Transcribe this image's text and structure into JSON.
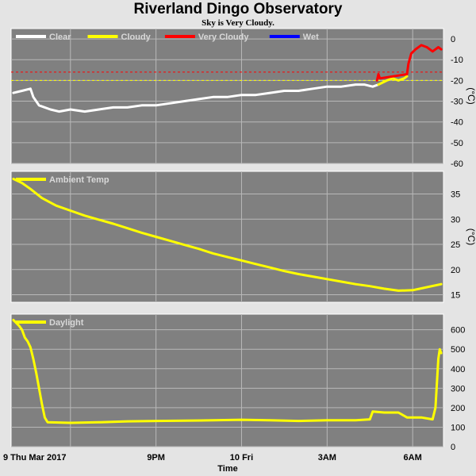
{
  "chart_data": {
    "title": "Riverland Dingo Observatory",
    "subtitle": "Sky is Very Cloudy.",
    "x_axis": {
      "label": "Time",
      "ticks": [
        {
          "label": "9 Thu Mar 2017",
          "x": 0
        },
        {
          "label": "9PM",
          "x": 3
        },
        {
          "label": "10 Fri",
          "x": 6
        },
        {
          "label": "3AM",
          "x": 9
        },
        {
          "label": "6AM",
          "x": 12
        }
      ],
      "xlim": [
        -2.08,
        13.08
      ]
    },
    "panels": [
      {
        "type": "line",
        "ylabel": "(°C)",
        "ylim": [
          -60,
          5
        ],
        "yticks": [
          0,
          -10,
          -20,
          -30,
          -40,
          -50,
          -60
        ],
        "grid": true,
        "legend": [
          {
            "label": "Clear",
            "color": "#ffffff"
          },
          {
            "label": "Cloudy",
            "color": "#ffff00"
          },
          {
            "label": "Very Cloudy",
            "color": "#ff0000"
          },
          {
            "label": "Wet",
            "color": "#0000ff"
          }
        ],
        "thresholds": [
          {
            "y": -16,
            "color": "#ff0000",
            "dash": true
          },
          {
            "y": -20,
            "color": "#ffff00",
            "dash": true
          }
        ],
        "series": [
          {
            "name": "Clear",
            "color": "#ffffff",
            "points": [
              [
                -2.0,
                -26
              ],
              [
                -1.7,
                -25
              ],
              [
                -1.4,
                -24
              ],
              [
                -1.3,
                -28
              ],
              [
                -1.1,
                -32
              ],
              [
                -0.7,
                -34
              ],
              [
                -0.4,
                -35
              ],
              [
                0.0,
                -34
              ],
              [
                0.5,
                -35
              ],
              [
                1.0,
                -34
              ],
              [
                1.5,
                -33
              ],
              [
                2.0,
                -33
              ],
              [
                2.5,
                -32
              ],
              [
                3.0,
                -32
              ],
              [
                3.5,
                -31
              ],
              [
                4.0,
                -30
              ],
              [
                4.5,
                -29
              ],
              [
                5.0,
                -28
              ],
              [
                5.5,
                -28
              ],
              [
                6.0,
                -27
              ],
              [
                6.5,
                -27
              ],
              [
                7.0,
                -26
              ],
              [
                7.5,
                -25
              ],
              [
                8.0,
                -25
              ],
              [
                8.5,
                -24
              ],
              [
                9.0,
                -23
              ],
              [
                9.5,
                -23
              ],
              [
                10.0,
                -22
              ],
              [
                10.3,
                -22
              ],
              [
                10.6,
                -23
              ],
              [
                10.8,
                -22
              ]
            ]
          },
          {
            "name": "Cloudy",
            "color": "#ffff00",
            "points": [
              [
                10.8,
                -22
              ],
              [
                11.1,
                -20
              ],
              [
                11.3,
                -19
              ],
              [
                11.5,
                -20
              ],
              [
                11.7,
                -19
              ],
              [
                11.8,
                -18
              ]
            ]
          },
          {
            "name": "Very Cloudy",
            "color": "#ff0000",
            "points": [
              [
                10.75,
                -20
              ],
              [
                10.8,
                -17
              ],
              [
                10.85,
                -19
              ],
              [
                11.8,
                -17
              ],
              [
                11.85,
                -12
              ],
              [
                11.95,
                -7
              ],
              [
                12.1,
                -5
              ],
              [
                12.3,
                -3
              ],
              [
                12.5,
                -4
              ],
              [
                12.7,
                -6
              ],
              [
                12.9,
                -4
              ],
              [
                13.0,
                -5
              ]
            ]
          }
        ]
      },
      {
        "type": "line",
        "ylabel": "(°C)",
        "ylim": [
          13.5,
          39.5
        ],
        "yticks": [
          15,
          20,
          25,
          30,
          35
        ],
        "grid": true,
        "legend": [
          {
            "label": "Ambient Temp",
            "color": "#ffff00"
          }
        ],
        "series": [
          {
            "name": "Ambient Temp",
            "color": "#ffff00",
            "points": [
              [
                -2.0,
                38
              ],
              [
                -1.7,
                37.2
              ],
              [
                -1.4,
                36
              ],
              [
                -1.0,
                34.2
              ],
              [
                -0.5,
                32.7
              ],
              [
                0.0,
                31.7
              ],
              [
                0.5,
                30.7
              ],
              [
                1.0,
                29.9
              ],
              [
                1.5,
                29.1
              ],
              [
                2.0,
                28.2
              ],
              [
                2.5,
                27.3
              ],
              [
                3.0,
                26.5
              ],
              [
                3.5,
                25.7
              ],
              [
                4.0,
                24.9
              ],
              [
                4.5,
                24.1
              ],
              [
                5.0,
                23.2
              ],
              [
                5.5,
                22.5
              ],
              [
                6.0,
                21.8
              ],
              [
                6.5,
                21.1
              ],
              [
                7.0,
                20.4
              ],
              [
                7.5,
                19.7
              ],
              [
                8.0,
                19.1
              ],
              [
                8.5,
                18.6
              ],
              [
                9.0,
                18.1
              ],
              [
                9.5,
                17.6
              ],
              [
                10.0,
                17.1
              ],
              [
                10.5,
                16.7
              ],
              [
                11.0,
                16.2
              ],
              [
                11.5,
                15.8
              ],
              [
                12.0,
                15.9
              ],
              [
                12.5,
                16.5
              ],
              [
                13.0,
                17.1
              ]
            ]
          }
        ]
      },
      {
        "type": "line",
        "ylabel": "",
        "ylim": [
          0,
          680
        ],
        "yticks": [
          0,
          100,
          200,
          300,
          400,
          500,
          600
        ],
        "grid": true,
        "legend": [
          {
            "label": "Daylight",
            "color": "#ffff00"
          }
        ],
        "series": [
          {
            "name": "Daylight",
            "color": "#ffff00",
            "points": [
              [
                -2.0,
                650
              ],
              [
                -1.8,
                620
              ],
              [
                -1.7,
                600
              ],
              [
                -1.6,
                560
              ],
              [
                -1.5,
                540
              ],
              [
                -1.4,
                510
              ],
              [
                -1.3,
                450
              ],
              [
                -1.2,
                380
              ],
              [
                -1.1,
                300
              ],
              [
                -1.0,
                220
              ],
              [
                -0.9,
                150
              ],
              [
                -0.8,
                125
              ],
              [
                0.0,
                122
              ],
              [
                1.0,
                125
              ],
              [
                2.0,
                130
              ],
              [
                3.0,
                132
              ],
              [
                4.0,
                133
              ],
              [
                5.0,
                135
              ],
              [
                6.0,
                138
              ],
              [
                7.0,
                135
              ],
              [
                8.0,
                132
              ],
              [
                9.0,
                135
              ],
              [
                10.0,
                135
              ],
              [
                10.5,
                140
              ],
              [
                10.6,
                180
              ],
              [
                11.0,
                175
              ],
              [
                11.5,
                175
              ],
              [
                11.8,
                150
              ],
              [
                12.3,
                150
              ],
              [
                12.7,
                140
              ],
              [
                12.8,
                200
              ],
              [
                12.9,
                450
              ],
              [
                12.95,
                500
              ],
              [
                13.0,
                480
              ]
            ]
          }
        ]
      }
    ]
  }
}
